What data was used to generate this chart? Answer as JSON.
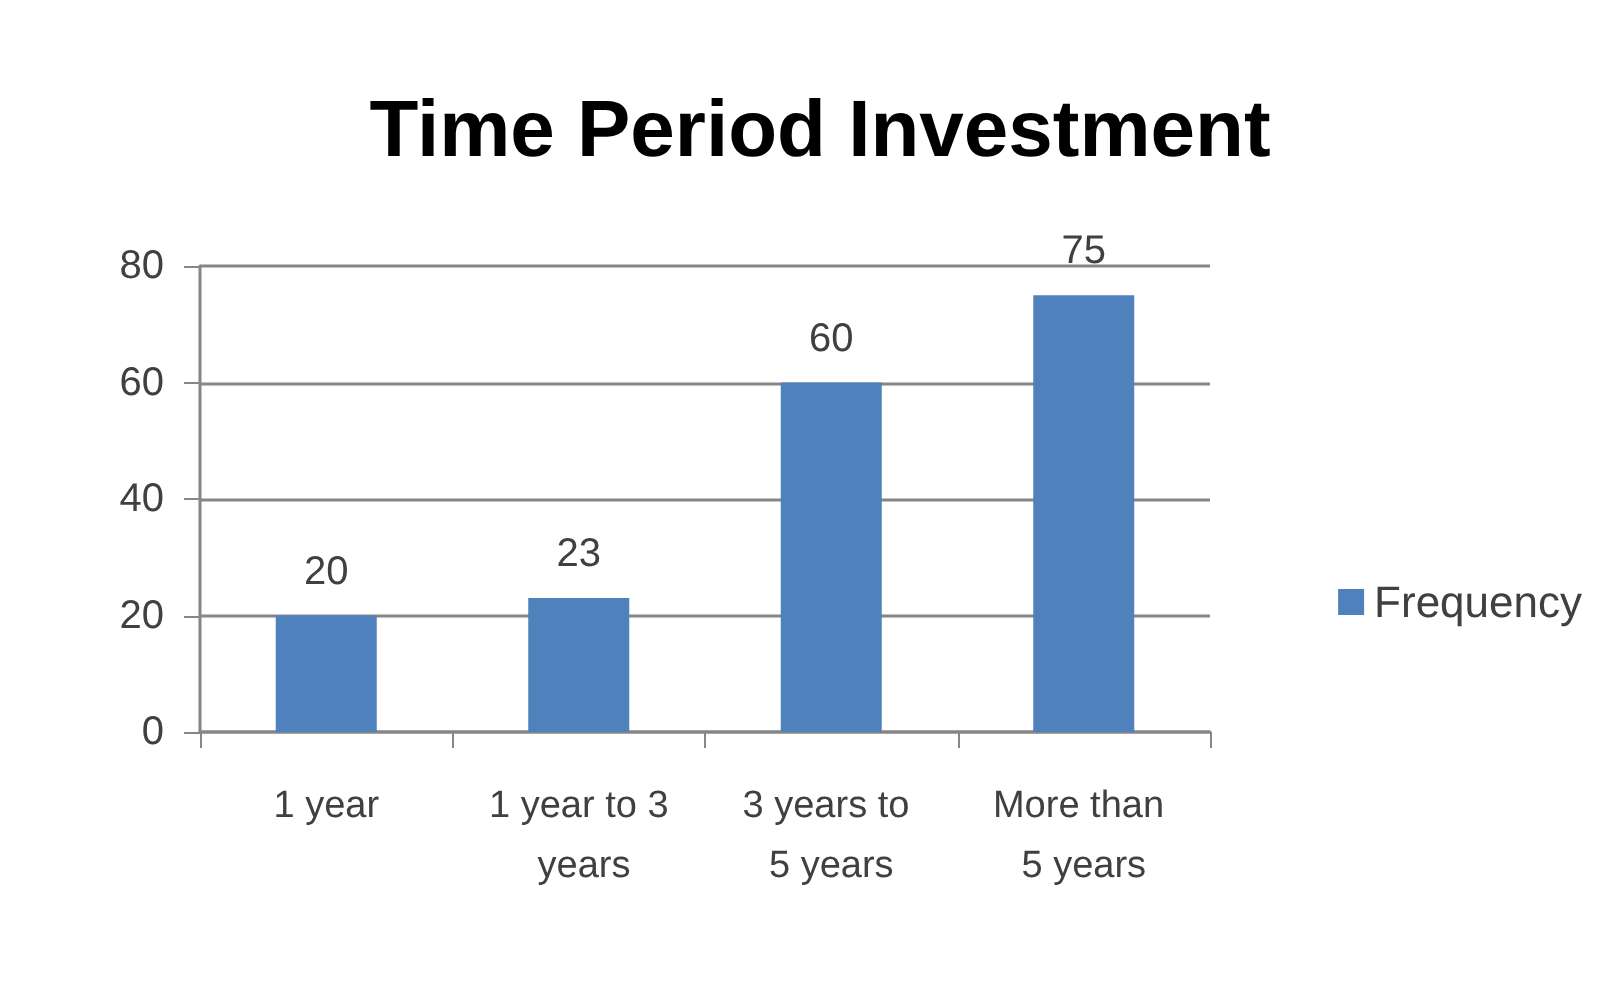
{
  "chart_data": {
    "type": "bar",
    "title": "Time Period Investment",
    "categories": [
      "1 year",
      "1 year to 3 years",
      "3 years to 5 years",
      "More than 5 years"
    ],
    "series": [
      {
        "name": "Frequency",
        "color": "#4f81bd",
        "values": [
          20,
          23,
          60,
          75
        ]
      }
    ],
    "ylim": [
      0,
      80
    ],
    "yticks": [
      0,
      20,
      40,
      60,
      80
    ],
    "grid": "y",
    "legend": "right",
    "data_labels": true
  }
}
